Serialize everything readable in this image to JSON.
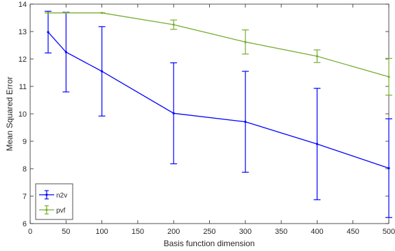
{
  "chart_data": {
    "type": "line",
    "title": "",
    "xlabel": "Basis function dimension",
    "ylabel": "Mean Squared Error",
    "xlim": [
      0,
      500
    ],
    "ylim": [
      6,
      14
    ],
    "xticks": [
      "0",
      "50",
      "100",
      "150",
      "200",
      "250",
      "300",
      "350",
      "400",
      "450",
      "500"
    ],
    "yticks": [
      "6",
      "7",
      "8",
      "9",
      "10",
      "11",
      "12",
      "13",
      "14"
    ],
    "grid": false,
    "legend_position": "bottom-left",
    "series": [
      {
        "name": "n2v",
        "color": "#0000ff",
        "x": [
          25,
          50,
          100,
          200,
          300,
          400,
          500
        ],
        "y": [
          12.98,
          12.25,
          11.55,
          10.02,
          9.71,
          8.9,
          8.02
        ],
        "err_low": [
          12.22,
          10.8,
          9.92,
          8.18,
          7.87,
          6.87,
          6.22
        ],
        "err_high": [
          13.74,
          13.7,
          13.18,
          11.86,
          11.55,
          10.93,
          9.82
        ]
      },
      {
        "name": "pvf",
        "color": "#77ac30",
        "x": [
          25,
          50,
          100,
          200,
          300,
          400,
          500
        ],
        "y": [
          13.68,
          13.68,
          13.68,
          13.25,
          12.62,
          12.1,
          11.35
        ],
        "err_low": [
          13.68,
          13.68,
          13.68,
          13.08,
          12.18,
          11.87,
          10.68
        ],
        "err_high": [
          13.68,
          13.68,
          13.68,
          13.42,
          13.06,
          12.33,
          12.02
        ]
      }
    ]
  }
}
